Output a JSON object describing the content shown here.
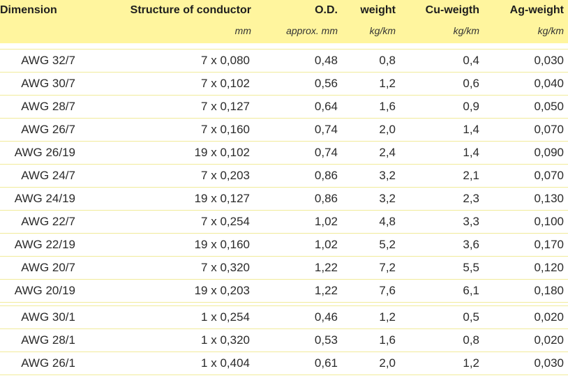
{
  "table": {
    "headers": [
      "Dimension",
      "Structure of conductor",
      "O.D.",
      "weight",
      "Cu-weigth",
      "Ag-weight"
    ],
    "units": [
      "",
      "mm",
      "approx. mm",
      "kg/km",
      "kg/km",
      "kg/km"
    ],
    "groups": [
      {
        "rows": [
          [
            "AWG 32/7",
            "7 x 0,080",
            "0,48",
            "0,8",
            "0,4",
            "0,030"
          ],
          [
            "AWG 30/7",
            "7 x 0,102",
            "0,56",
            "1,2",
            "0,6",
            "0,040"
          ],
          [
            "AWG 28/7",
            "7 x 0,127",
            "0,64",
            "1,6",
            "0,9",
            "0,050"
          ],
          [
            "AWG 26/7",
            "7 x 0,160",
            "0,74",
            "2,0",
            "1,4",
            "0,070"
          ],
          [
            "AWG 26/19",
            "19 x 0,102",
            "0,74",
            "2,4",
            "1,4",
            "0,090"
          ],
          [
            "AWG 24/7",
            "7 x 0,203",
            "0,86",
            "3,2",
            "2,1",
            "0,070"
          ],
          [
            "AWG 24/19",
            "19 x 0,127",
            "0,86",
            "3,2",
            "2,3",
            "0,130"
          ],
          [
            "AWG 22/7",
            "7 x 0,254",
            "1,02",
            "4,8",
            "3,3",
            "0,100"
          ],
          [
            "AWG 22/19",
            "19 x 0,160",
            "1,02",
            "5,2",
            "3,6",
            "0,170"
          ],
          [
            "AWG 20/7",
            "7 x 0,320",
            "1,22",
            "7,2",
            "5,5",
            "0,120"
          ],
          [
            "AWG 20/19",
            "19 x 0,203",
            "1,22",
            "7,6",
            "6,1",
            "0,180"
          ]
        ]
      },
      {
        "rows": [
          [
            "AWG 30/1",
            "1 x 0,254",
            "0,46",
            "1,2",
            "0,5",
            "0,020"
          ],
          [
            "AWG 28/1",
            "1 x 0,320",
            "0,53",
            "1,6",
            "0,8",
            "0,020"
          ],
          [
            "AWG 26/1",
            "1 x 0,404",
            "0,61",
            "2,0",
            "1,2",
            "0,030"
          ]
        ]
      }
    ]
  }
}
